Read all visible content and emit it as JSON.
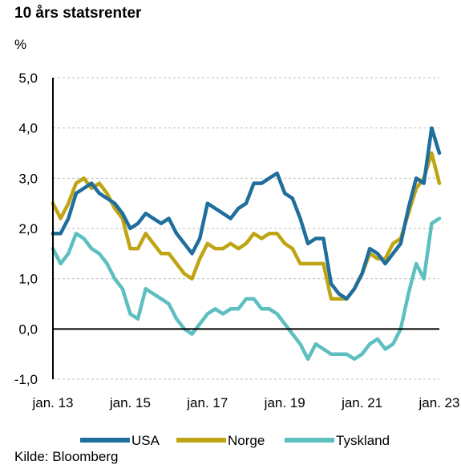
{
  "chart_data": {
    "type": "line",
    "title": "10 års statsrenter",
    "ylabel": "%",
    "ylim": [
      -1.0,
      5.0
    ],
    "yticks": [
      -1.0,
      0.0,
      1.0,
      2.0,
      3.0,
      4.0,
      5.0
    ],
    "ytick_labels": [
      "-1,0",
      "0,0",
      "1,0",
      "2,0",
      "3,0",
      "4,0",
      "5,0"
    ],
    "xlim": [
      2013.0,
      2023.0
    ],
    "xticks": [
      2013,
      2015,
      2017,
      2019,
      2021,
      2023
    ],
    "xtick_labels": [
      "jan. 13",
      "jan. 15",
      "jan. 17",
      "jan. 19",
      "jan. 21",
      "jan. 23"
    ],
    "grid": "horizontal-dashed",
    "legend_position": "bottom",
    "source": "Kilde: Bloomberg",
    "series": [
      {
        "name": "USA",
        "color": "#1f6e9c",
        "x": [
          2013.0,
          2013.2,
          2013.4,
          2013.6,
          2013.8,
          2014.0,
          2014.2,
          2014.4,
          2014.6,
          2014.8,
          2015.0,
          2015.2,
          2015.4,
          2015.6,
          2015.8,
          2016.0,
          2016.2,
          2016.4,
          2016.6,
          2016.8,
          2017.0,
          2017.2,
          2017.4,
          2017.6,
          2017.8,
          2018.0,
          2018.2,
          2018.4,
          2018.6,
          2018.8,
          2019.0,
          2019.2,
          2019.4,
          2019.6,
          2019.8,
          2020.0,
          2020.2,
          2020.4,
          2020.6,
          2020.8,
          2021.0,
          2021.2,
          2021.4,
          2021.6,
          2021.8,
          2022.0,
          2022.2,
          2022.4,
          2022.6,
          2022.8,
          2023.0
        ],
        "y": [
          1.9,
          1.9,
          2.2,
          2.7,
          2.8,
          2.9,
          2.7,
          2.6,
          2.5,
          2.3,
          2.0,
          2.1,
          2.3,
          2.2,
          2.1,
          2.2,
          1.9,
          1.7,
          1.5,
          1.8,
          2.5,
          2.4,
          2.3,
          2.2,
          2.4,
          2.5,
          2.9,
          2.9,
          3.0,
          3.1,
          2.7,
          2.6,
          2.2,
          1.7,
          1.8,
          1.8,
          0.9,
          0.7,
          0.6,
          0.8,
          1.1,
          1.6,
          1.5,
          1.3,
          1.5,
          1.7,
          2.4,
          3.0,
          2.9,
          4.0,
          3.5
        ]
      },
      {
        "name": "Norge",
        "color": "#bfa514",
        "x": [
          2013.0,
          2013.2,
          2013.4,
          2013.6,
          2013.8,
          2014.0,
          2014.2,
          2014.4,
          2014.6,
          2014.8,
          2015.0,
          2015.2,
          2015.4,
          2015.6,
          2015.8,
          2016.0,
          2016.2,
          2016.4,
          2016.6,
          2016.8,
          2017.0,
          2017.2,
          2017.4,
          2017.6,
          2017.8,
          2018.0,
          2018.2,
          2018.4,
          2018.6,
          2018.8,
          2019.0,
          2019.2,
          2019.4,
          2019.6,
          2019.8,
          2020.0,
          2020.2,
          2020.4,
          2020.6,
          2020.8,
          2021.0,
          2021.2,
          2021.4,
          2021.6,
          2021.8,
          2022.0,
          2022.2,
          2022.4,
          2022.6,
          2022.8,
          2023.0
        ],
        "y": [
          2.5,
          2.2,
          2.5,
          2.9,
          3.0,
          2.8,
          2.9,
          2.7,
          2.4,
          2.2,
          1.6,
          1.6,
          1.9,
          1.7,
          1.5,
          1.5,
          1.3,
          1.1,
          1.0,
          1.4,
          1.7,
          1.6,
          1.6,
          1.7,
          1.6,
          1.7,
          1.9,
          1.8,
          1.9,
          1.9,
          1.7,
          1.6,
          1.3,
          1.3,
          1.3,
          1.3,
          0.6,
          0.6,
          0.6,
          0.8,
          1.1,
          1.5,
          1.4,
          1.4,
          1.7,
          1.8,
          2.3,
          2.8,
          3.0,
          3.5,
          2.9
        ]
      },
      {
        "name": "Tyskland",
        "color": "#5ebfc0",
        "x": [
          2013.0,
          2013.2,
          2013.4,
          2013.6,
          2013.8,
          2014.0,
          2014.2,
          2014.4,
          2014.6,
          2014.8,
          2015.0,
          2015.2,
          2015.4,
          2015.6,
          2015.8,
          2016.0,
          2016.2,
          2016.4,
          2016.6,
          2016.8,
          2017.0,
          2017.2,
          2017.4,
          2017.6,
          2017.8,
          2018.0,
          2018.2,
          2018.4,
          2018.6,
          2018.8,
          2019.0,
          2019.2,
          2019.4,
          2019.6,
          2019.8,
          2020.0,
          2020.2,
          2020.4,
          2020.6,
          2020.8,
          2021.0,
          2021.2,
          2021.4,
          2021.6,
          2021.8,
          2022.0,
          2022.2,
          2022.4,
          2022.6,
          2022.8,
          2023.0
        ],
        "y": [
          1.6,
          1.3,
          1.5,
          1.9,
          1.8,
          1.6,
          1.5,
          1.3,
          1.0,
          0.8,
          0.3,
          0.2,
          0.8,
          0.7,
          0.6,
          0.5,
          0.2,
          0.0,
          -0.1,
          0.1,
          0.3,
          0.4,
          0.3,
          0.4,
          0.4,
          0.6,
          0.6,
          0.4,
          0.4,
          0.3,
          0.1,
          -0.1,
          -0.3,
          -0.6,
          -0.3,
          -0.4,
          -0.5,
          -0.5,
          -0.5,
          -0.6,
          -0.5,
          -0.3,
          -0.2,
          -0.4,
          -0.3,
          0.0,
          0.7,
          1.3,
          1.0,
          2.1,
          2.2
        ]
      }
    ]
  }
}
